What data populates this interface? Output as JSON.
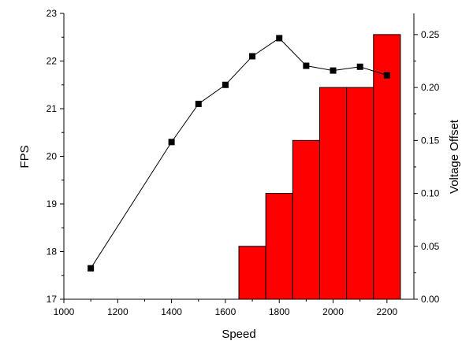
{
  "chart_data": {
    "type": "bar+line",
    "xlabel": "Speed",
    "ylabel_left": "FPS",
    "ylabel_right": "Voltage Offset",
    "xlim": [
      1000,
      2300
    ],
    "ylim_left": [
      17,
      23
    ],
    "ylim_right": [
      0,
      0.27
    ],
    "x_ticks": [
      1000,
      1200,
      1400,
      1600,
      1800,
      2000,
      2200
    ],
    "y_left_ticks": [
      17,
      18,
      19,
      20,
      21,
      22,
      23
    ],
    "y_right_ticks": [
      "0.00",
      "0.05",
      "0.10",
      "0.15",
      "0.20",
      "0.25"
    ],
    "line_series": {
      "x": [
        1100,
        1400,
        1500,
        1600,
        1700,
        1800,
        1900,
        2000,
        2100,
        2200
      ],
      "y": [
        17.65,
        20.3,
        21.1,
        21.5,
        22.1,
        22.48,
        21.9,
        21.8,
        21.88,
        21.7
      ],
      "marker": "square",
      "color": "#000000"
    },
    "bar_series": {
      "x": [
        1700,
        1800,
        1900,
        2000,
        2100,
        2200
      ],
      "y": [
        0.05,
        0.1,
        0.15,
        0.2,
        0.2,
        0.25
      ],
      "bar_width": 100,
      "color": "#ff0000",
      "edge_color": "#000000"
    },
    "grid": false
  }
}
